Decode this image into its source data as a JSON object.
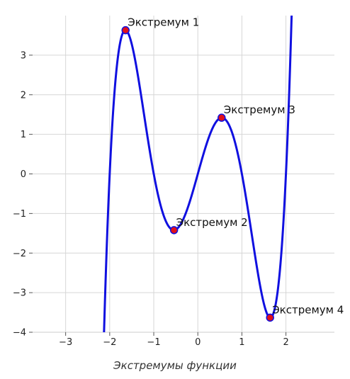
{
  "chart_data": {
    "type": "line",
    "caption": "Экстремумы функции",
    "xlim": [
      -3.75,
      3.1
    ],
    "ylim": [
      -4,
      4
    ],
    "x_ticks": [
      -3,
      -2,
      -1,
      0,
      1,
      2
    ],
    "y_ticks": [
      -4,
      -3,
      -2,
      -1,
      0,
      1,
      2,
      3
    ],
    "x_tick_labels": [
      "−3",
      "−2",
      "−1",
      "0",
      "1",
      "2"
    ],
    "y_tick_labels": [
      "−4",
      "−3",
      "−2",
      "−1",
      "0",
      "1",
      "2",
      "3"
    ],
    "grid": true,
    "series": [
      {
        "function": "x^5 - 5x^3 + 4x",
        "x_range": [
          -2.13,
          2.13
        ],
        "color": "#1010e0"
      }
    ],
    "extrema": [
      {
        "x": -1.64,
        "y": 3.63,
        "label": "Экстремум 1"
      },
      {
        "x": -0.54,
        "y": -1.42,
        "label": "Экстремум 2"
      },
      {
        "x": 0.54,
        "y": 1.42,
        "label": "Экстремум 3"
      },
      {
        "x": 1.64,
        "y": -3.63,
        "label": "Экстремум 4"
      }
    ],
    "marker_color": "#e0101a"
  }
}
